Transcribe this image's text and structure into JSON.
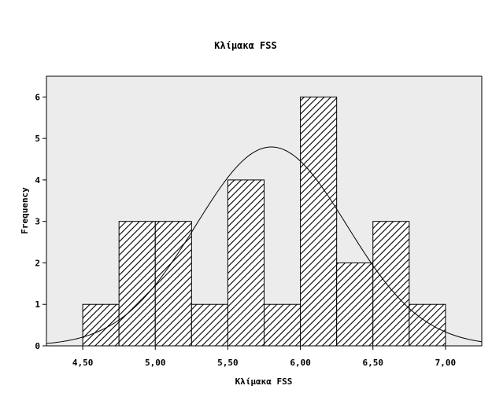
{
  "chart_data": {
    "type": "bar",
    "title": "Κλίμακα FSS",
    "xlabel": "Κλίμακα FSS",
    "ylabel": "Frequency",
    "bin_edges": [
      4.5,
      4.75,
      5.0,
      5.25,
      5.5,
      5.75,
      6.0,
      6.25,
      6.5,
      6.75,
      7.0
    ],
    "values": [
      1,
      3,
      3,
      1,
      4,
      1,
      6,
      2,
      3,
      1
    ],
    "xlim": [
      4.25,
      7.25
    ],
    "ylim": [
      0,
      6.5
    ],
    "x_ticks": [
      4.5,
      5.0,
      5.5,
      6.0,
      6.5,
      7.0
    ],
    "x_tick_labels": [
      "4,50",
      "5,00",
      "5,50",
      "6,00",
      "6,50",
      "7,00"
    ],
    "y_ticks": [
      0,
      1,
      2,
      3,
      4,
      5,
      6
    ],
    "y_tick_labels": [
      "0",
      "1",
      "2",
      "3",
      "4",
      "5",
      "6"
    ],
    "normal_curve": {
      "mean": 5.8,
      "sd": 0.52,
      "n": 25,
      "bin_width": 0.25
    },
    "bar_pattern": "diagonal-hatch",
    "grid": false,
    "colors": {
      "plot_background": "#ececec",
      "bar_fill": "#ffffff",
      "hatch": "#000000",
      "curve": "#000000"
    }
  }
}
